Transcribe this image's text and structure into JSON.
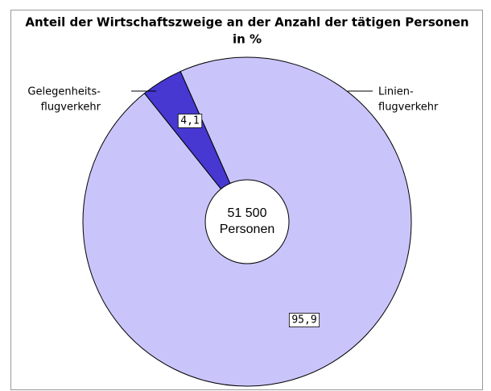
{
  "chart_data": {
    "type": "pie",
    "title_lines": [
      "Anteil der Wirtschaftszweige an der Anzahl der tätigen Personen",
      "in %"
    ],
    "categories": [
      [
        "Gelegenheits-",
        "flugverkehr"
      ],
      [
        "Linien-",
        "flugverkehr"
      ]
    ],
    "values": [
      4.1,
      95.9
    ],
    "value_labels": [
      "4,1",
      "95,9"
    ],
    "colors": [
      "#4638d0",
      "#c9c5fb"
    ],
    "center_label": [
      "51 500",
      "Personen"
    ]
  }
}
